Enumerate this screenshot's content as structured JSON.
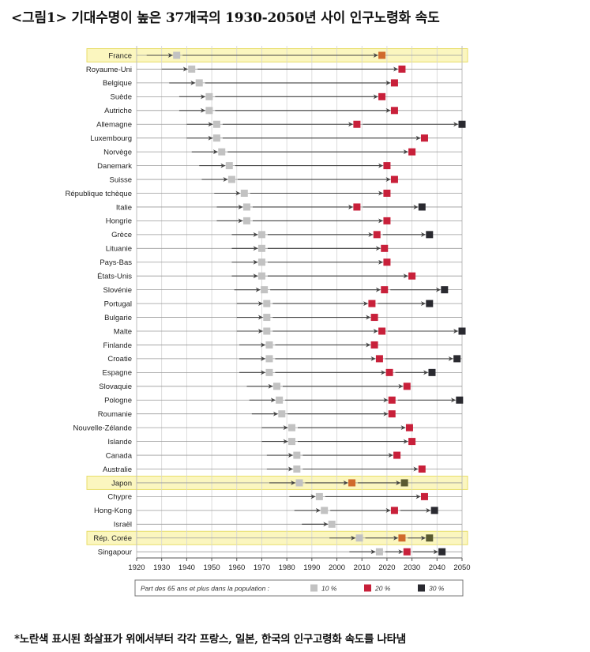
{
  "title": "<그림1> 기대수명이 높은 37개국의 1930-2050년 사이 인구노령화 속도",
  "footnote": "*노란색 표시된 화살표가 위에서부터 각각 프랑스, 일본, 한국의 인구고령화 속도를 나타냄",
  "colors": {
    "p10": "#c2c2c2",
    "p20": "#c8203a",
    "p30": "#2a2a30",
    "highlight_fill": "#fbf6bf",
    "highlight_border": "#e8de6a",
    "highlight_marker": "#d06a2c",
    "highlight_marker_30": "#5a5a30",
    "arrow": "#444444"
  },
  "chart_data": {
    "type": "scatter",
    "x_axis": {
      "min": 1920,
      "max": 2050,
      "ticks": [
        1920,
        1930,
        1940,
        1950,
        1960,
        1970,
        1980,
        1990,
        2000,
        2010,
        2020,
        2030,
        2040,
        2050
      ]
    },
    "grid": true,
    "legend": {
      "title": "Part des 65 ans et plus dans la population :",
      "items": [
        {
          "key": "p10",
          "label": "10 %"
        },
        {
          "key": "p20",
          "label": "20 %"
        },
        {
          "key": "p30",
          "label": "30 %"
        }
      ],
      "position": "bottom"
    },
    "rows": [
      {
        "country": "France",
        "p10": 1936,
        "p20": 2018,
        "p30": null,
        "highlight": true
      },
      {
        "country": "Royaume-Uni",
        "p10": 1942,
        "p20": 2026,
        "p30": null
      },
      {
        "country": "Belgique",
        "p10": 1945,
        "p20": 2023,
        "p30": null
      },
      {
        "country": "Suède",
        "p10": 1949,
        "p20": 2018,
        "p30": null
      },
      {
        "country": "Autriche",
        "p10": 1949,
        "p20": 2023,
        "p30": null
      },
      {
        "country": "Allemagne",
        "p10": 1952,
        "p20": 2008,
        "p30": 2050
      },
      {
        "country": "Luxembourg",
        "p10": 1952,
        "p20": 2035,
        "p30": null
      },
      {
        "country": "Norvège",
        "p10": 1954,
        "p20": 2030,
        "p30": null
      },
      {
        "country": "Danemark",
        "p10": 1957,
        "p20": 2020,
        "p30": null
      },
      {
        "country": "Suisse",
        "p10": 1958,
        "p20": 2023,
        "p30": null
      },
      {
        "country": "République tchèque",
        "p10": 1963,
        "p20": 2020,
        "p30": null
      },
      {
        "country": "Italie",
        "p10": 1964,
        "p20": 2008,
        "p30": 2034
      },
      {
        "country": "Hongrie",
        "p10": 1964,
        "p20": 2020,
        "p30": null
      },
      {
        "country": "Grèce",
        "p10": 1970,
        "p20": 2016,
        "p30": 2037
      },
      {
        "country": "Lituanie",
        "p10": 1970,
        "p20": 2019,
        "p30": null
      },
      {
        "country": "Pays-Bas",
        "p10": 1970,
        "p20": 2020,
        "p30": null
      },
      {
        "country": "États-Unis",
        "p10": 1970,
        "p20": 2030,
        "p30": null
      },
      {
        "country": "Slovénie",
        "p10": 1971,
        "p20": 2019,
        "p30": 2043
      },
      {
        "country": "Portugal",
        "p10": 1972,
        "p20": 2014,
        "p30": 2037
      },
      {
        "country": "Bulgarie",
        "p10": 1972,
        "p20": 2015,
        "p30": null
      },
      {
        "country": "Malte",
        "p10": 1972,
        "p20": 2018,
        "p30": 2050
      },
      {
        "country": "Finlande",
        "p10": 1973,
        "p20": 2015,
        "p30": null
      },
      {
        "country": "Croatie",
        "p10": 1973,
        "p20": 2017,
        "p30": 2048
      },
      {
        "country": "Espagne",
        "p10": 1973,
        "p20": 2021,
        "p30": 2038
      },
      {
        "country": "Slovaquie",
        "p10": 1976,
        "p20": 2028,
        "p30": null
      },
      {
        "country": "Pologne",
        "p10": 1977,
        "p20": 2022,
        "p30": 2049
      },
      {
        "country": "Roumanie",
        "p10": 1978,
        "p20": 2022,
        "p30": null
      },
      {
        "country": "Nouvelle-Zélande",
        "p10": 1982,
        "p20": 2029,
        "p30": null
      },
      {
        "country": "Islande",
        "p10": 1982,
        "p20": 2030,
        "p30": null
      },
      {
        "country": "Canada",
        "p10": 1984,
        "p20": 2024,
        "p30": null
      },
      {
        "country": "Australie",
        "p10": 1984,
        "p20": 2034,
        "p30": null
      },
      {
        "country": "Japon",
        "p10": 1985,
        "p20": 2006,
        "p30": 2027,
        "highlight": true
      },
      {
        "country": "Chypre",
        "p10": 1993,
        "p20": 2035,
        "p30": null
      },
      {
        "country": "Hong-Kong",
        "p10": 1995,
        "p20": 2023,
        "p30": 2039
      },
      {
        "country": "Israël",
        "p10": 1998,
        "p20": null,
        "p30": null
      },
      {
        "country": "Rép. Corée",
        "p10": 2009,
        "p20": 2026,
        "p30": 2037,
        "highlight": true
      },
      {
        "country": "Singapour",
        "p10": 2017,
        "p20": 2028,
        "p30": 2042
      }
    ]
  }
}
